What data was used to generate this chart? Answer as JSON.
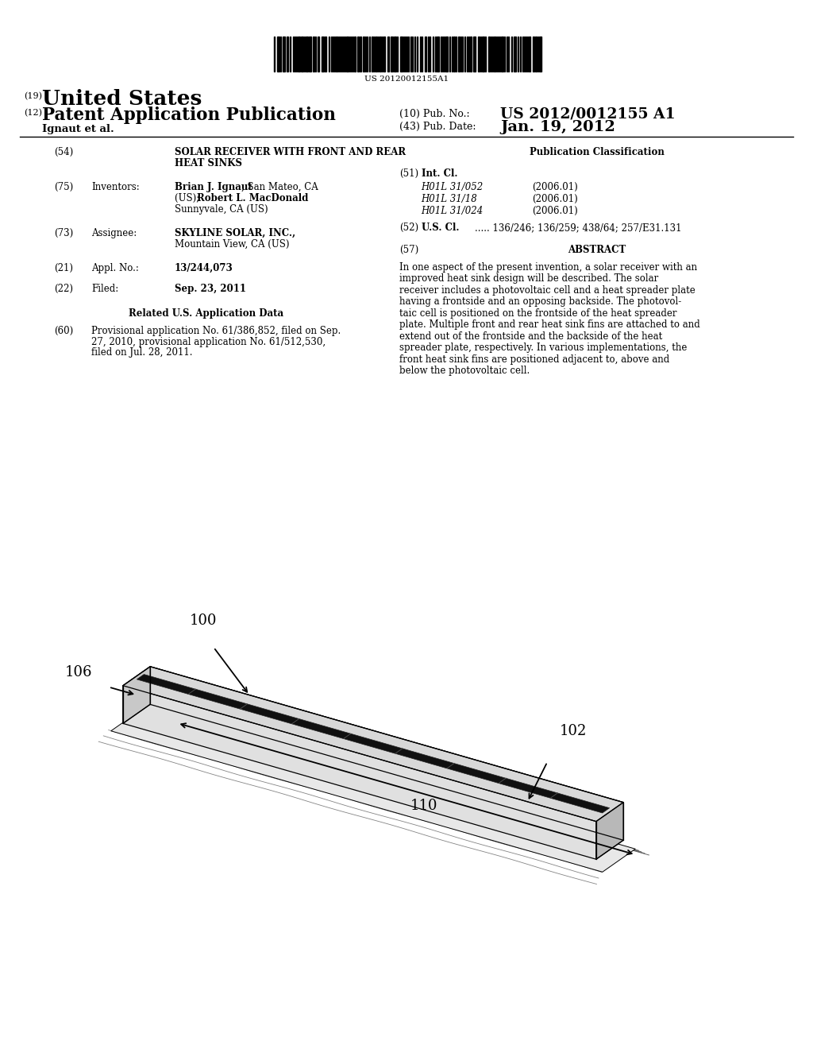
{
  "bg_color": "#ffffff",
  "barcode_text": "US 20120012155A1",
  "header_19_label": "(19)",
  "header_19_text": "United States",
  "header_12_label": "(12)",
  "header_12_text": "Patent Application Publication",
  "header_10_label": "(10) Pub. No.:",
  "header_10_val": "US 2012/0012155 A1",
  "header_43_label": "(43) Pub. Date:",
  "header_43_val": "Jan. 19, 2012",
  "author": "Ignaut et al.",
  "f54_num": "(54)",
  "f54_line1": "SOLAR RECEIVER WITH FRONT AND REAR",
  "f54_line2": "HEAT SINKS",
  "f75_num": "(75)",
  "f75_lbl": "Inventors:",
  "f75_v1a": "Brian J. Ignaut",
  "f75_v1b": ", San Mateo, CA",
  "f75_v2a": "(US); ",
  "f75_v2b": "Robert L. MacDonald",
  "f75_v2c": ",",
  "f75_v3": "Sunnyvale, CA (US)",
  "f73_num": "(73)",
  "f73_lbl": "Assignee:",
  "f73_v1": "SKYLINE SOLAR, INC.,",
  "f73_v2": "Mountain View, CA (US)",
  "f21_num": "(21)",
  "f21_lbl": "Appl. No.:",
  "f21_val": "13/244,073",
  "f22_num": "(22)",
  "f22_lbl": "Filed:",
  "f22_val": "Sep. 23, 2011",
  "related_hdr": "Related U.S. Application Data",
  "f60_num": "(60)",
  "f60_v1": "Provisional application No. 61/386,852, filed on Sep.",
  "f60_v2": "27, 2010, provisional application No. 61/512,530,",
  "f60_v3": "filed on Jul. 28, 2011.",
  "pub_class_hdr": "Publication Classification",
  "f51_num": "(51)",
  "f51_lbl": "Int. Cl.",
  "ic1": "H01L 31/052",
  "ic1y": "(2006.01)",
  "ic2": "H01L 31/18",
  "ic2y": "(2006.01)",
  "ic3": "H01L 31/024",
  "ic3y": "(2006.01)",
  "f52_num": "(52)",
  "f52_lbl": "U.S. Cl.",
  "f52_val": "..... 136/246; 136/259; 438/64; 257/E31.131",
  "f57_num": "(57)",
  "f57_lbl": "ABSTRACT",
  "abs": [
    "In one aspect of the present invention, a solar receiver with an",
    "improved heat sink design will be described. The solar",
    "receiver includes a photovoltaic cell and a heat spreader plate",
    "having a frontside and an opposing backside. The photovol-",
    "taic cell is positioned on the frontside of the heat spreader",
    "plate. Multiple front and rear heat sink fins are attached to and",
    "extend out of the frontside and the backside of the heat",
    "spreader plate, respectively. In various implementations, the",
    "front heat sink fins are positioned adjacent to, above and",
    "below the photovoltaic cell."
  ],
  "lbl100": "100",
  "lbl102": "102",
  "lbl106": "106",
  "lbl110": "110"
}
